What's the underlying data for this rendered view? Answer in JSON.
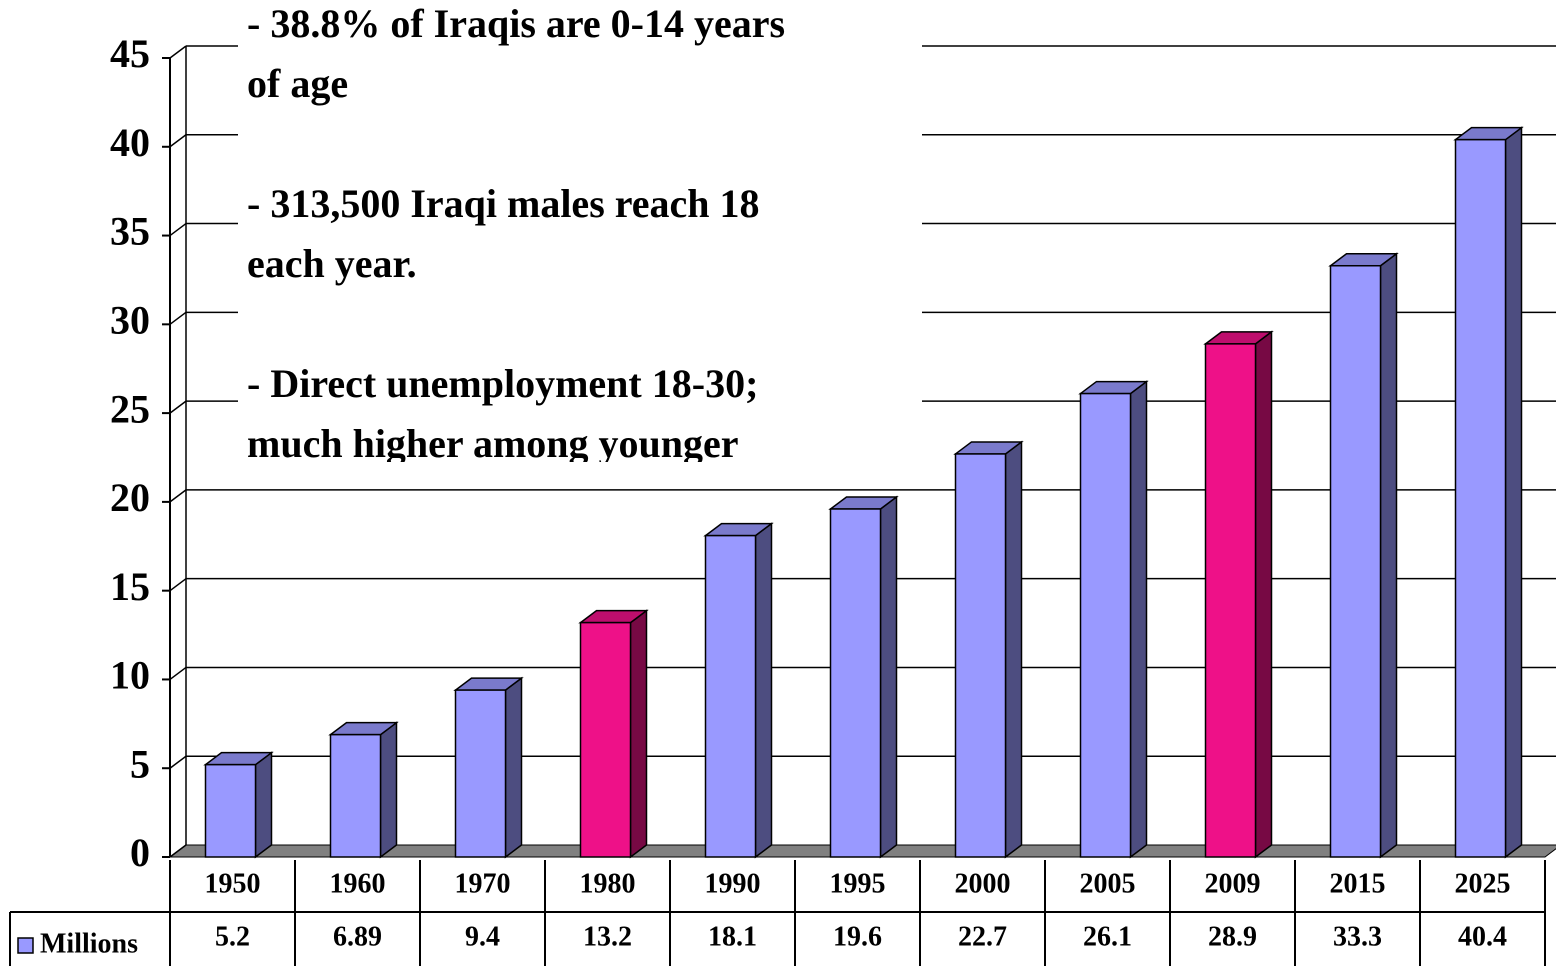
{
  "chart_data": {
    "type": "bar3d",
    "categories": [
      "1950",
      "1960",
      "1970",
      "1980",
      "1990",
      "1995",
      "2000",
      "2005",
      "2009",
      "2015",
      "2025"
    ],
    "series": [
      {
        "name": "Millions",
        "color": "#9999ff",
        "values": [
          5.2,
          6.89,
          9.4,
          13.2,
          18.1,
          19.6,
          22.7,
          26.1,
          28.9,
          33.3,
          40.4
        ],
        "colors": [
          "#9999ff",
          "#9999ff",
          "#9999ff",
          "#ee1188",
          "#9999ff",
          "#9999ff",
          "#9999ff",
          "#9999ff",
          "#ee1188",
          "#9999ff",
          "#9999ff"
        ]
      }
    ],
    "ylim": [
      0,
      45
    ],
    "yticks": [
      0,
      5,
      10,
      15,
      20,
      25,
      30,
      35,
      40,
      45
    ],
    "grid": true,
    "data_table": true,
    "annotations": [
      [
        "- 38.8% of Iraqis are 0-14 years",
        "of age"
      ],
      [
        "- 313,500 Iraqi males reach 18",
        "each year."
      ],
      [
        "- Direct unemployment 18-30;",
        "much higher among younger"
      ]
    ]
  }
}
